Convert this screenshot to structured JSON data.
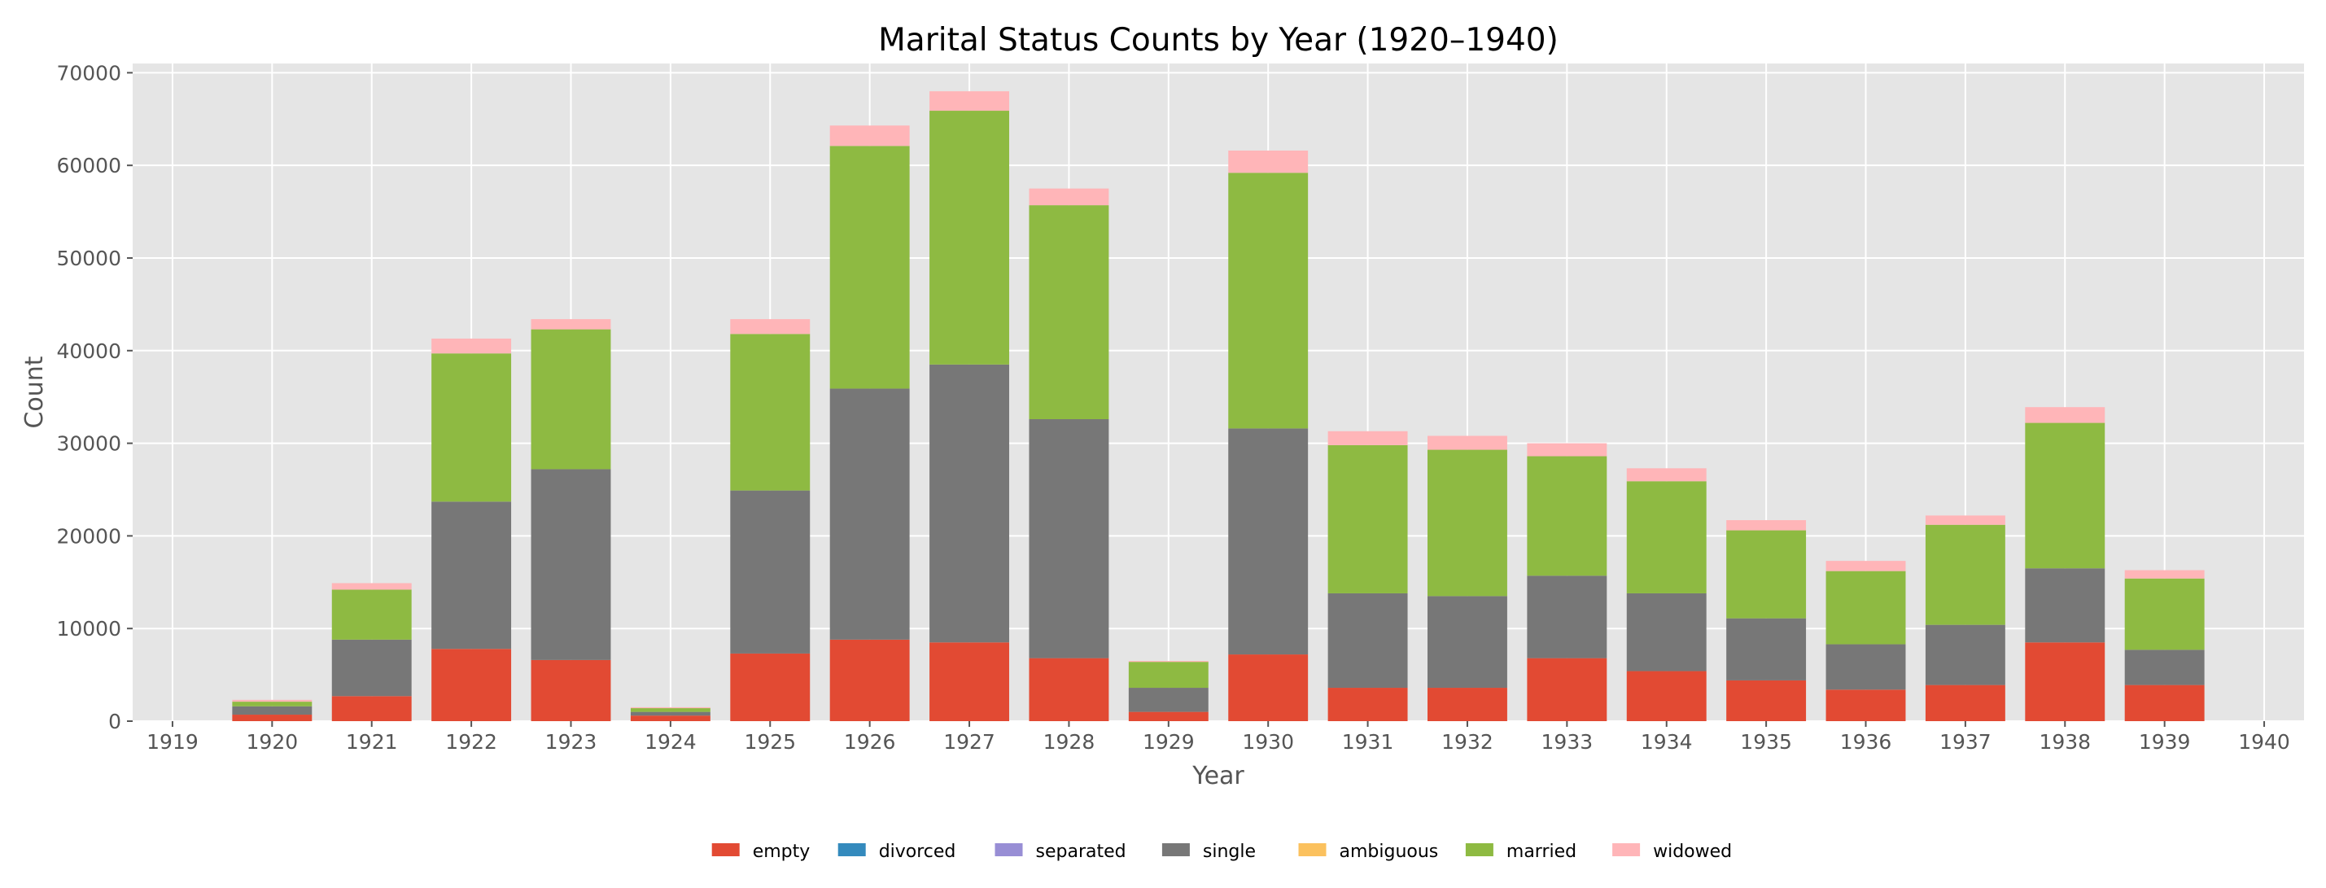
{
  "chart_data": {
    "type": "bar",
    "stacked": true,
    "title": "Marital Status Counts by Year (1920–1940)",
    "xlabel": "Year",
    "ylabel": "Count",
    "x_ticks": [
      "1919",
      "1920",
      "1921",
      "1922",
      "1923",
      "1924",
      "1925",
      "1926",
      "1927",
      "1928",
      "1929",
      "1930",
      "1931",
      "1932",
      "1933",
      "1934",
      "1935",
      "1936",
      "1937",
      "1938",
      "1939",
      "1940"
    ],
    "y_ticks": [
      "0",
      "10000",
      "20000",
      "30000",
      "40000",
      "50000",
      "60000",
      "70000"
    ],
    "y_tick_values": [
      0,
      10000,
      20000,
      30000,
      40000,
      50000,
      60000,
      70000
    ],
    "xlim": [
      1918.6,
      1940.4
    ],
    "ylim": [
      0,
      71000
    ],
    "grid": true,
    "legend_position": "bottom-center",
    "categories": [
      1920,
      1921,
      1922,
      1923,
      1924,
      1925,
      1926,
      1927,
      1928,
      1929,
      1930,
      1931,
      1932,
      1933,
      1934,
      1935,
      1936,
      1937,
      1938,
      1939
    ],
    "series": [
      {
        "name": "empty",
        "color": "#E24A33",
        "values": [
          700,
          2700,
          7800,
          6600,
          600,
          7300,
          8800,
          8500,
          6800,
          1000,
          7200,
          3600,
          3600,
          6800,
          5400,
          4400,
          3400,
          3900,
          8500,
          3900
        ]
      },
      {
        "name": "divorced",
        "color": "#348ABD",
        "values": [
          0,
          0,
          0,
          0,
          0,
          0,
          0,
          0,
          0,
          0,
          0,
          0,
          0,
          0,
          0,
          0,
          0,
          0,
          0,
          0
        ]
      },
      {
        "name": "separated",
        "color": "#988ED5",
        "values": [
          0,
          0,
          0,
          0,
          0,
          0,
          0,
          0,
          0,
          0,
          0,
          0,
          0,
          0,
          0,
          0,
          0,
          0,
          0,
          0
        ]
      },
      {
        "name": "single",
        "color": "#777777",
        "values": [
          900,
          6100,
          15900,
          20600,
          400,
          17600,
          27100,
          30000,
          25800,
          2600,
          24400,
          10200,
          9900,
          8900,
          8400,
          6700,
          4900,
          6500,
          8000,
          3800
        ]
      },
      {
        "name": "ambiguous",
        "color": "#FBC15E",
        "values": [
          0,
          0,
          0,
          0,
          0,
          0,
          0,
          0,
          0,
          0,
          0,
          0,
          0,
          0,
          0,
          0,
          0,
          0,
          0,
          0
        ]
      },
      {
        "name": "married",
        "color": "#8EBA42",
        "values": [
          500,
          5400,
          16000,
          15100,
          400,
          16900,
          26200,
          27400,
          23100,
          2800,
          27600,
          16000,
          15800,
          12900,
          12100,
          9500,
          7900,
          10800,
          15700,
          7700
        ]
      },
      {
        "name": "widowed",
        "color": "#FFB5B8",
        "values": [
          200,
          700,
          1600,
          1100,
          100,
          1600,
          2200,
          2100,
          1800,
          100,
          2400,
          1500,
          1500,
          1400,
          1400,
          1100,
          1100,
          1000,
          1700,
          900
        ]
      }
    ]
  }
}
